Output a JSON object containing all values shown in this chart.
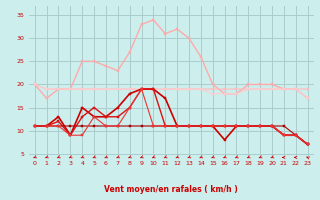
{
  "bg_color": "#cceeed",
  "grid_color": "#aacccc",
  "xlabel": "Vent moyen/en rafales ( km/h )",
  "xlabel_color": "#cc0000",
  "yticks": [
    5,
    10,
    15,
    20,
    25,
    30,
    35
  ],
  "xticks": [
    0,
    1,
    2,
    3,
    4,
    5,
    6,
    7,
    8,
    9,
    10,
    11,
    12,
    13,
    14,
    15,
    16,
    17,
    18,
    19,
    20,
    21,
    22,
    23
  ],
  "ylim": [
    4.5,
    37
  ],
  "xlim": [
    -0.5,
    23.5
  ],
  "series": [
    {
      "color": "#ffaaaa",
      "marker": "s",
      "markersize": 2.0,
      "linewidth": 1.0,
      "values": [
        20,
        17,
        19,
        19,
        25,
        25,
        24,
        23,
        27,
        33,
        34,
        31,
        32,
        30,
        26,
        20,
        18,
        18,
        20,
        20,
        20,
        19,
        19,
        17
      ]
    },
    {
      "color": "#ffbbbb",
      "marker": "s",
      "markersize": 1.5,
      "linewidth": 0.8,
      "values": [
        20,
        19,
        19,
        19,
        19,
        19,
        19,
        19,
        19,
        19,
        19,
        19,
        19,
        19,
        19,
        19,
        19,
        19,
        19,
        19,
        19,
        19,
        19,
        19
      ]
    },
    {
      "color": "#ffcccc",
      "marker": "s",
      "markersize": 1.5,
      "linewidth": 0.8,
      "values": [
        20,
        19,
        19,
        19,
        19,
        19,
        19,
        19,
        19,
        19,
        19,
        19,
        19,
        19,
        19,
        18,
        18,
        18,
        19,
        19,
        19,
        19,
        19,
        17
      ]
    },
    {
      "color": "#cc0000",
      "marker": "s",
      "markersize": 2.0,
      "linewidth": 1.2,
      "values": [
        11,
        11,
        13,
        9,
        15,
        13,
        13,
        15,
        18,
        19,
        19,
        17,
        11,
        11,
        11,
        11,
        8,
        11,
        11,
        11,
        11,
        9,
        9,
        7
      ]
    },
    {
      "color": "#dd1111",
      "marker": "s",
      "markersize": 2.0,
      "linewidth": 1.0,
      "values": [
        11,
        11,
        12,
        9,
        13,
        15,
        13,
        13,
        15,
        19,
        19,
        11,
        11,
        11,
        11,
        11,
        11,
        11,
        11,
        11,
        11,
        9,
        9,
        7
      ]
    },
    {
      "color": "#aa0000",
      "marker": "s",
      "markersize": 1.5,
      "linewidth": 0.8,
      "values": [
        11,
        11,
        11,
        11,
        11,
        11,
        11,
        11,
        11,
        11,
        11,
        11,
        11,
        11,
        11,
        11,
        11,
        11,
        11,
        11,
        11,
        11,
        9,
        7
      ]
    },
    {
      "color": "#ee3333",
      "marker": "s",
      "markersize": 1.5,
      "linewidth": 0.8,
      "values": [
        11,
        11,
        11,
        9,
        9,
        13,
        11,
        11,
        15,
        19,
        11,
        11,
        11,
        11,
        11,
        11,
        11,
        11,
        11,
        11,
        11,
        9,
        9,
        7
      ]
    }
  ],
  "arrow_color": "#cc0000",
  "arrow_angles": [
    225,
    225,
    225,
    225,
    225,
    225,
    225,
    225,
    225,
    225,
    225,
    225,
    225,
    225,
    225,
    225,
    225,
    225,
    225,
    225,
    225,
    270,
    270,
    315
  ]
}
